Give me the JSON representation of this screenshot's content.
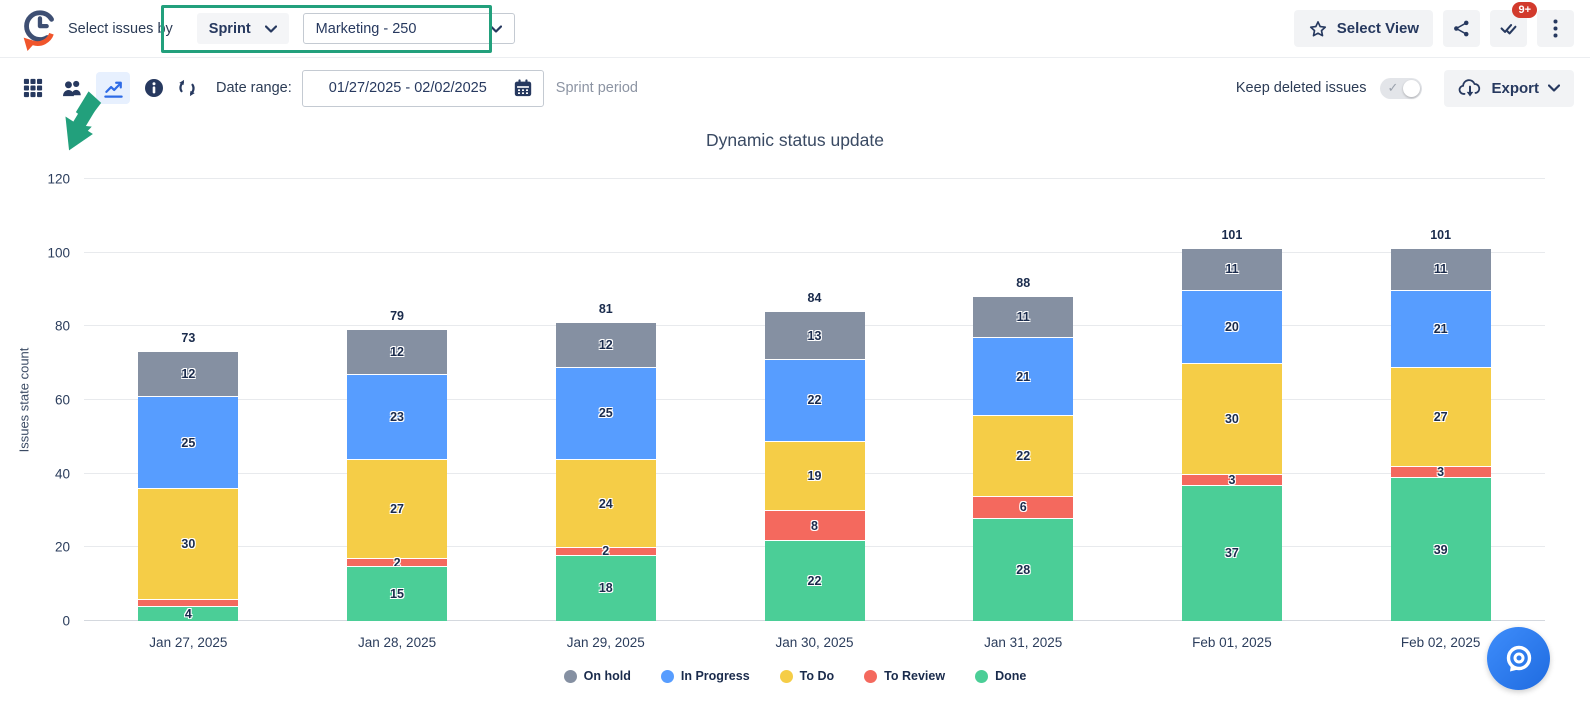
{
  "header": {
    "select_issues_by": "Select issues by",
    "sprint_dropdown": "Sprint",
    "sprint_value": "Marketing - 250",
    "select_view_label": "Select View",
    "notification_badge": "9+"
  },
  "toolbar": {
    "date_range_label": "Date range:",
    "date_range_value": "01/27/2025 - 02/02/2025",
    "sprint_period_label": "Sprint period",
    "keep_deleted_label": "Keep deleted issues",
    "export_label": "Export"
  },
  "colors": {
    "accent_green": "#22A07C",
    "selected_icon_blue": "#2E6BE6",
    "badge_red": "#D23A2C",
    "fab_blue": "#2E7CF6"
  },
  "chart_data": {
    "type": "bar",
    "stacked": true,
    "title": "Dynamic status update",
    "ylabel": "Issues state count",
    "xlabel": "",
    "ylim": [
      0,
      120
    ],
    "y_ticks": [
      0,
      20,
      40,
      60,
      80,
      100,
      120
    ],
    "grid": true,
    "legend_position": "bottom",
    "categories": [
      "Jan 27, 2025",
      "Jan 28, 2025",
      "Jan 29, 2025",
      "Jan 30, 2025",
      "Jan 31, 2025",
      "Feb 01, 2025",
      "Feb 02, 2025"
    ],
    "totals": [
      73,
      79,
      81,
      84,
      88,
      101,
      101
    ],
    "series": [
      {
        "name": "Done",
        "color": "#4BCE97",
        "values": [
          4,
          15,
          18,
          22,
          28,
          37,
          39
        ],
        "labels": [
          "4",
          "15",
          "18",
          "22",
          "28",
          "37",
          "39"
        ]
      },
      {
        "name": "To Review",
        "color": "#F4695E",
        "values": [
          2,
          2,
          2,
          8,
          6,
          3,
          3
        ],
        "labels": [
          "",
          "2",
          "2",
          "8",
          "6",
          "3",
          "3"
        ]
      },
      {
        "name": "To Do",
        "color": "#F5CD47",
        "values": [
          30,
          27,
          24,
          19,
          22,
          30,
          27
        ],
        "labels": [
          "30",
          "27",
          "24",
          "19",
          "22",
          "30",
          "27"
        ]
      },
      {
        "name": "In Progress",
        "color": "#579DFF",
        "values": [
          25,
          23,
          25,
          22,
          21,
          20,
          21
        ],
        "labels": [
          "25",
          "23",
          "25",
          "22",
          "21",
          "20",
          "21"
        ]
      },
      {
        "name": "On hold",
        "color": "#8590A2",
        "values": [
          12,
          12,
          12,
          13,
          11,
          11,
          11
        ],
        "labels": [
          "12",
          "12",
          "12",
          "13",
          "11",
          "11",
          "11"
        ]
      }
    ]
  }
}
